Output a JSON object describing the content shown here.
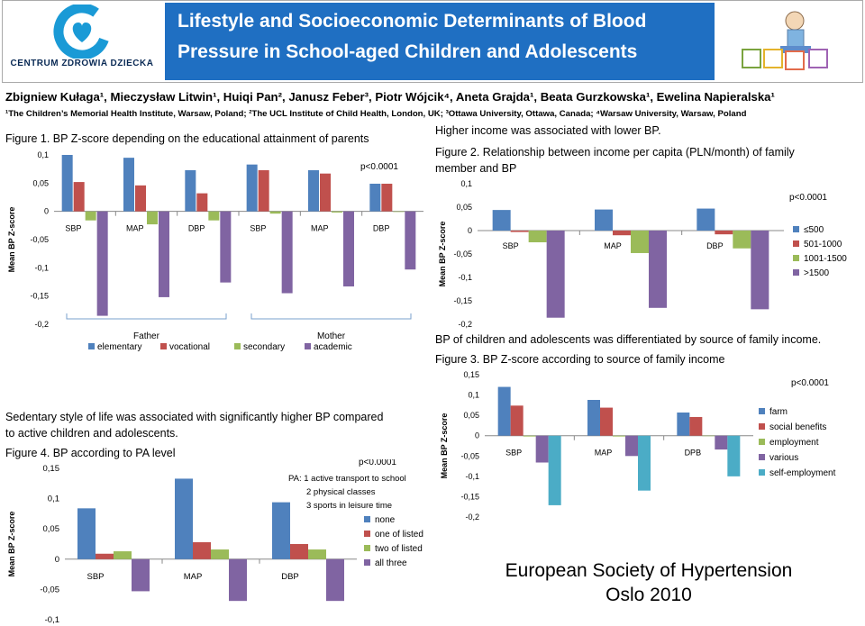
{
  "banner": {
    "logo_text": "CENTRUM ZDROWIA DZIECKA",
    "title": "Lifestyle and Socioeconomic Determinants of Blood Pressure in School-aged Children and Adolescents",
    "title_color": "#1f6fc2"
  },
  "authors": "Zbigniew Kułaga¹, Mieczysław Litwin¹, Huiqi Pan², Janusz Feber³, Piotr Wójcik⁴, Aneta Grajda¹, Beata Gurzkowska¹, Ewelina Napieralska¹",
  "affiliations": "¹The Children’s Memorial Health Institute, Warsaw, Poland; ²The UCL Institute of Child Health, London, UK; ³Ottawa University, Ottawa, Canada; ⁴Warsaw University, Warsaw, Poland",
  "texts": {
    "fig1_caption": "Figure 1. BP Z-score depending on the educational attainment of parents",
    "income_statement": "Higher income was associated with lower BP.",
    "fig2_caption_line1": "Figure 2. Relationship between income per capita (PLN/month) of family",
    "fig2_caption_line2": "member and BP",
    "source_statement": "BP of children and adolescents was differentiated by source of family income.",
    "fig3_caption": "Figure 3. BP Z-score according to source of family income",
    "sedentary_line1": "Sedentary style of life was associated with significantly higher BP compared",
    "sedentary_line2": "to active children and adolescents.",
    "fig4_caption": "Figure 4. BP according to PA level"
  },
  "footer": {
    "line1": "European Society of Hypertension",
    "line2": "Oslo 2010"
  },
  "colors": {
    "blue": "#4f81bd",
    "red": "#c0504d",
    "green": "#9bbb59",
    "purple": "#8064a2",
    "cyan": "#4bacc6"
  },
  "chart_data": [
    {
      "id": "fig1",
      "type": "bar",
      "ylabel": "Mean BP Z-score",
      "ylim": [
        -0.2,
        0.1
      ],
      "yticks": [
        "0,1",
        "0,05",
        "0",
        "-0,05",
        "-0,1",
        "-0,15",
        "-0,2"
      ],
      "yticks_values": [
        0.1,
        0.05,
        0,
        -0.05,
        -0.1,
        -0.15,
        -0.2
      ],
      "categories": [
        "SBP",
        "MAP",
        "DBP",
        "SBP",
        "MAP",
        "DBP"
      ],
      "groups": [
        "Father",
        "Mother"
      ],
      "annotation": "p<0.0001",
      "legend_position": "bottom",
      "series": [
        {
          "name": "elementary",
          "color": "#4f81bd",
          "values": [
            0.1,
            0.095,
            0.073,
            0.083,
            0.073,
            0.049
          ]
        },
        {
          "name": "vocational",
          "color": "#c0504d",
          "values": [
            0.052,
            0.046,
            0.032,
            0.073,
            0.067,
            0.049
          ]
        },
        {
          "name": "secondary",
          "color": "#9bbb59",
          "values": [
            -0.016,
            -0.023,
            -0.016,
            -0.004,
            -0.002,
            -0.001
          ]
        },
        {
          "name": "academic",
          "color": "#8064a2",
          "values": [
            -0.185,
            -0.152,
            -0.126,
            -0.145,
            -0.133,
            -0.103
          ]
        }
      ]
    },
    {
      "id": "fig2",
      "type": "bar",
      "ylabel": "Mean BP Z-score",
      "ylim": [
        -0.2,
        0.1
      ],
      "yticks": [
        "0,1",
        "0,05",
        "0",
        "-0,05",
        "-0,1",
        "-0,15",
        "-0,2"
      ],
      "yticks_values": [
        0.1,
        0.05,
        0,
        -0.05,
        -0.1,
        -0.15,
        -0.2
      ],
      "categories": [
        "SBP",
        "MAP",
        "DBP"
      ],
      "annotation": "p<0.0001",
      "legend_position": "right",
      "series": [
        {
          "name": "≤500",
          "color": "#4f81bd",
          "values": [
            0.044,
            0.045,
            0.047
          ]
        },
        {
          "name": "501-1000",
          "color": "#c0504d",
          "values": [
            -0.003,
            -0.01,
            -0.008
          ]
        },
        {
          "name": "1001-1500",
          "color": "#9bbb59",
          "values": [
            -0.025,
            -0.048,
            -0.038
          ]
        },
        {
          "name": ">1500",
          "color": "#8064a2",
          "values": [
            -0.186,
            -0.165,
            -0.168
          ]
        }
      ]
    },
    {
      "id": "fig3",
      "type": "bar",
      "ylabel": "Mean BP Z-score",
      "ylim": [
        -0.2,
        0.15
      ],
      "yticks": [
        "0,15",
        "0,1",
        "0,05",
        "0",
        "-0,05",
        "-0,1",
        "-0,15",
        "-0,2"
      ],
      "yticks_values": [
        0.15,
        0.1,
        0.05,
        0,
        -0.05,
        -0.1,
        -0.15,
        -0.2
      ],
      "categories": [
        "SBP",
        "MAP",
        "DPB"
      ],
      "annotation": "p<0.0001",
      "legend_position": "right",
      "series": [
        {
          "name": "farm",
          "color": "#4f81bd",
          "values": [
            0.12,
            0.088,
            0.057
          ]
        },
        {
          "name": "social benefits",
          "color": "#c0504d",
          "values": [
            0.074,
            0.069,
            0.046
          ]
        },
        {
          "name": "employment",
          "color": "#9bbb59",
          "values": [
            -0.002,
            -0.002,
            -0.001
          ]
        },
        {
          "name": "various",
          "color": "#8064a2",
          "values": [
            -0.066,
            -0.05,
            -0.034
          ]
        },
        {
          "name": "self-employment",
          "color": "#4bacc6",
          "values": [
            -0.171,
            -0.135,
            -0.1
          ]
        }
      ]
    },
    {
      "id": "fig4",
      "type": "bar",
      "ylabel": "Mean BP Z-score",
      "ylim": [
        -0.1,
        0.15
      ],
      "yticks": [
        "0,15",
        "0,1",
        "0,05",
        "0",
        "-0,05",
        "-0,1"
      ],
      "yticks_values": [
        0.15,
        0.1,
        0.05,
        0,
        -0.05,
        -0.1
      ],
      "categories": [
        "SBP",
        "MAP",
        "DBP"
      ],
      "annotation": "p<0.0001",
      "note_lines": [
        "PA: 1 active transport to school",
        "2 physical classes",
        "3 sports in leisure time"
      ],
      "legend_position": "right",
      "series": [
        {
          "name": "none",
          "color": "#4f81bd",
          "values": [
            0.084,
            0.133,
            0.094
          ]
        },
        {
          "name": "one of listed",
          "color": "#c0504d",
          "values": [
            0.009,
            0.028,
            0.025
          ]
        },
        {
          "name": "two of listed",
          "color": "#9bbb59",
          "values": [
            0.013,
            0.016,
            0.016
          ]
        },
        {
          "name": "all three",
          "color": "#8064a2",
          "values": [
            -0.053,
            -0.069,
            -0.069
          ]
        }
      ]
    }
  ]
}
